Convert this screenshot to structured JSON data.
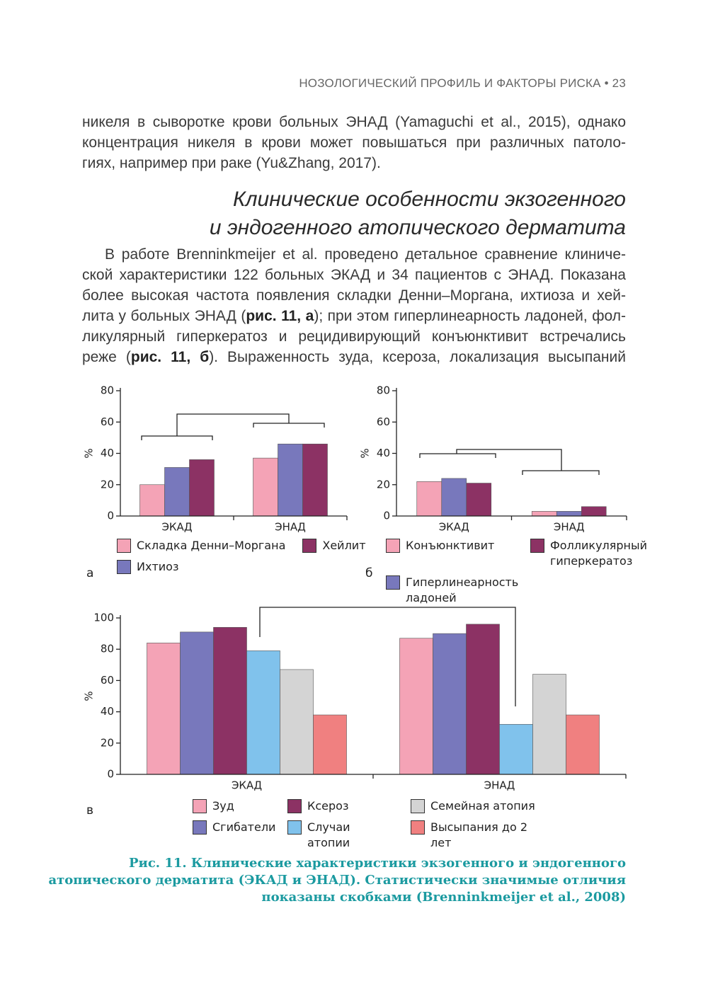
{
  "header": {
    "running_title": "НОЗОЛОГИЧЕСКИЙ ПРОФИЛЬ И ФАКТОРЫ РИСКА • 23"
  },
  "paragraph_1": {
    "lines": [
      "никеля в сыворотке крови больных ЭНАД (Yamaguchi et al., 2015), однако",
      "концентрация никеля в крови может повышаться при различных патоло-",
      "гиях, например при раке (Yu&Zhang, 2017)."
    ]
  },
  "section_heading": {
    "lines": [
      "Клинические особенности экзогенного",
      "и эндогенного атопического дерматита"
    ]
  },
  "paragraph_2": {
    "lines": [
      "В работе Brenninkmeijer et al. проведено детальное сравнение клиниче-",
      "ской характеристики 122 больных ЭКАД и 34 пациентов с ЭНАД. Показана",
      "более высокая частота появления складки Денни–Моргана, ихтиоза и хей-",
      [
        "лита у больных ЭНАД (",
        "рис. 11, а",
        "); при этом гиперлинеарность ладоней, фол-"
      ],
      "ликулярный гиперкератоз и рецидивирующий конъюнктивит встречались",
      [
        "реже (",
        "рис. 11, б",
        "). Выраженность зуда, ксероза, локализация высыпаний"
      ]
    ]
  },
  "chart_data": [
    {
      "type": "bar",
      "panel_label": "а",
      "y_label": "%",
      "categories": [
        "ЭКАД",
        "ЭНАД"
      ],
      "series": [
        {
          "name": "Складка Денни–Моргана",
          "color": "#f4a3b6",
          "values": [
            20,
            37
          ]
        },
        {
          "name": "Ихтиоз",
          "color": "#7878bc",
          "values": [
            31,
            46
          ]
        },
        {
          "name": "Хейлит",
          "color": "#8c3264",
          "values": [
            36,
            46
          ]
        }
      ],
      "ylim": [
        0,
        80
      ],
      "yticks": [
        0,
        20,
        40,
        60,
        80
      ]
    },
    {
      "type": "bar",
      "panel_label": "б",
      "y_label": "%",
      "categories": [
        "ЭКАД",
        "ЭНАД"
      ],
      "series": [
        {
          "name": "Конъюнктивит",
          "color": "#f4a3b6",
          "values": [
            22,
            3
          ]
        },
        {
          "name": "Гиперлинеарность ладоней",
          "color": "#7878bc",
          "values": [
            24,
            3
          ]
        },
        {
          "name": "Фолликулярный гиперкератоз",
          "color": "#8c3264",
          "values": [
            21,
            6
          ]
        }
      ],
      "ylim": [
        0,
        80
      ],
      "yticks": [
        0,
        20,
        40,
        60,
        80
      ]
    },
    {
      "type": "bar",
      "panel_label": "в",
      "y_label": "%",
      "categories": [
        "ЭКАД",
        "ЭНАД"
      ],
      "series": [
        {
          "name": "Зуд",
          "color": "#f4a3b6",
          "values": [
            84,
            87
          ]
        },
        {
          "name": "Сгибатели",
          "color": "#7878bc",
          "values": [
            91,
            90
          ]
        },
        {
          "name": "Ксероз",
          "color": "#8c3264",
          "values": [
            94,
            96
          ]
        },
        {
          "name": "Случаи атопии",
          "color": "#80c2ec",
          "values": [
            79,
            32
          ]
        },
        {
          "name": "Семейная атопия",
          "color": "#d4d4d4",
          "values": [
            67,
            64
          ]
        },
        {
          "name": "Высыпания до 2 лет",
          "color": "#f08080",
          "values": [
            38,
            38
          ]
        }
      ],
      "ylim": [
        0,
        100
      ],
      "yticks": [
        0,
        20,
        40,
        60,
        80,
        100
      ]
    }
  ],
  "caption": {
    "lines": [
      "Рис. 11. Клинические характеристики экзогенного и эндогенного",
      "атопического дерматита (ЭКАД и ЭНАД). Статистически значимые отличия",
      "показаны скобками (Brenninkmeijer et al., 2008)"
    ]
  }
}
